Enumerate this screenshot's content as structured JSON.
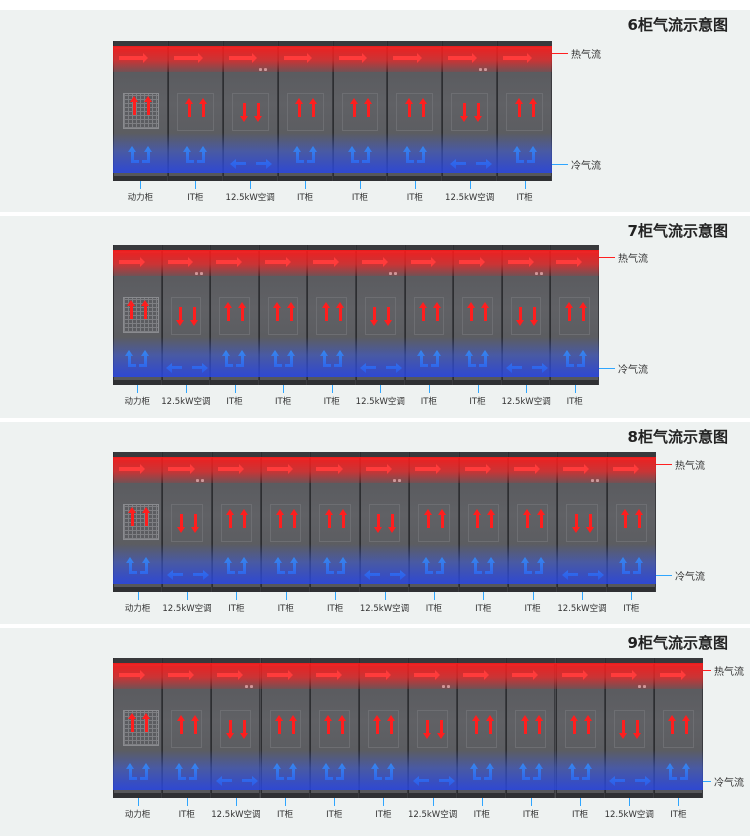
{
  "legend": {
    "hot_air": "热气流",
    "cold_air": "冷气流",
    "hot_color": "#ff2020",
    "cold_color": "#2fa6ff"
  },
  "cabinet_types": {
    "power": "动力柜",
    "it": "IT柜",
    "ac": "12.5kW空调"
  },
  "diagrams": [
    {
      "title": "6柜气流示意图",
      "cabinets": [
        "power",
        "it",
        "ac",
        "it",
        "it",
        "it",
        "ac",
        "it"
      ]
    },
    {
      "title": "7柜气流示意图",
      "cabinets": [
        "power",
        "ac",
        "it",
        "it",
        "it",
        "ac",
        "it",
        "it",
        "ac",
        "it"
      ]
    },
    {
      "title": "8柜气流示意图",
      "cabinets": [
        "power",
        "ac",
        "it",
        "it",
        "it",
        "ac",
        "it",
        "it",
        "it",
        "ac",
        "it"
      ]
    },
    {
      "title": "9柜气流示意图",
      "cabinets": [
        "power",
        "it",
        "ac",
        "it",
        "it",
        "it",
        "ac",
        "it",
        "it",
        "it",
        "ac",
        "it"
      ]
    }
  ]
}
